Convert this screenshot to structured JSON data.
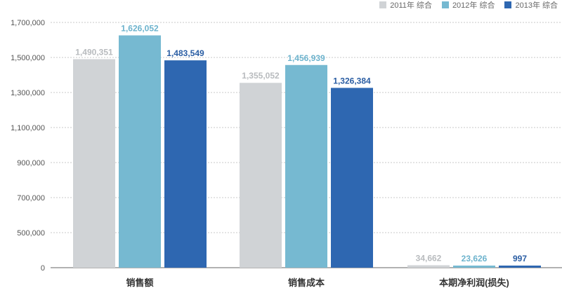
{
  "chart_data": {
    "type": "bar",
    "categories": [
      "销售额",
      "销售成本",
      "本期净利润(损失)"
    ],
    "series": [
      {
        "name": "2011年 综合",
        "color": "#d0d3d6",
        "label_color": "#b8bbbe",
        "values": [
          1490351,
          1355052,
          34662
        ],
        "labels": [
          "1,490,351",
          "1,355,052",
          "34,662"
        ]
      },
      {
        "name": "2012年 综合",
        "color": "#76b9d1",
        "label_color": "#6db3cd",
        "values": [
          1626052,
          1456939,
          23626
        ],
        "labels": [
          "1,626,052",
          "1,456,939",
          "23,626"
        ]
      },
      {
        "name": "2013年 综合",
        "color": "#2e67b1",
        "label_color": "#2a5da3",
        "values": [
          1483549,
          1326384,
          997
        ],
        "labels": [
          "1,483,549",
          "1,326,384",
          "997"
        ]
      }
    ],
    "y_ticks": [
      0,
      500000,
      700000,
      900000,
      1100000,
      1300000,
      1500000,
      1700000
    ],
    "y_tick_labels": [
      "0",
      "500,000",
      "700,000",
      "900,000",
      "1,100,000",
      "1,300,000",
      "1,500,000",
      "1,700,000"
    ],
    "grid": true,
    "legend_position": "top-right"
  }
}
